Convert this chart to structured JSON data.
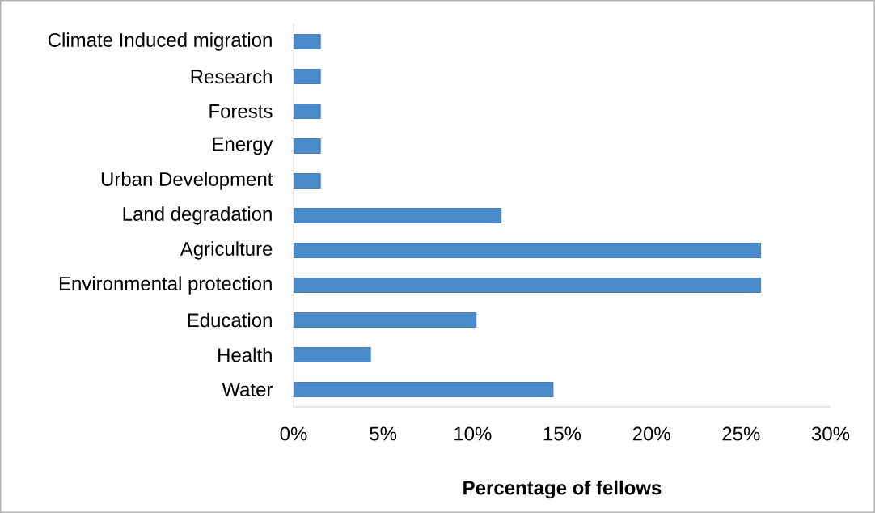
{
  "chart_data": {
    "type": "bar",
    "orientation": "horizontal",
    "categories": [
      "Climate Induced migration",
      "Research",
      "Forests",
      "Energy",
      "Urban Development",
      "Land degradation",
      "Agriculture",
      "Environmental protection",
      "Education",
      "Health",
      "Water"
    ],
    "values": [
      1.5,
      1.5,
      1.5,
      1.5,
      1.5,
      11.6,
      26.1,
      26.1,
      10.2,
      4.3,
      14.5
    ],
    "color": "#4a8ccb",
    "xlabel": "Percentage of fellows",
    "xlim": [
      0,
      30
    ],
    "xticks": [
      {
        "value": 0,
        "label": "0%"
      },
      {
        "value": 5,
        "label": "5%"
      },
      {
        "value": 10,
        "label": "10%"
      },
      {
        "value": 15,
        "label": "15%"
      },
      {
        "value": 20,
        "label": "20%"
      },
      {
        "value": 25,
        "label": "25%"
      },
      {
        "value": 30,
        "label": "30%"
      }
    ]
  }
}
